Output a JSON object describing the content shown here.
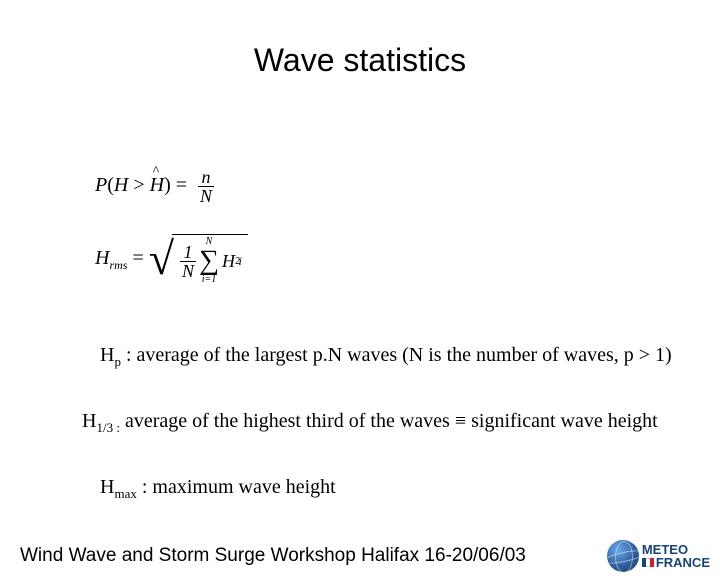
{
  "title": "Wave statistics",
  "formulas": {
    "prob": {
      "lhs_P": "P",
      "lhs_open": "(",
      "lhs_H": "H",
      "lhs_gt": " > ",
      "lhs_Hhat": "H",
      "lhs_close": ")",
      "eq": " = ",
      "num": "n",
      "den": "N"
    },
    "hrms": {
      "H": "H",
      "rms": "rms",
      "eq": " = ",
      "frac_num": "1",
      "frac_den": "N",
      "sum_top": "N",
      "sum_bot": "i=1",
      "Hi": "H",
      "i": "i",
      "sq": "2"
    }
  },
  "defs": {
    "hp": {
      "sym": "H",
      "sub": "p",
      "text": " : average of the largest p.N waves (N is the number of waves, p > 1)"
    },
    "h13": {
      "sym": "H",
      "sub": "1/3 :",
      "text": " average of the highest third of the waves ≡ significant wave height"
    },
    "hmax": {
      "sym": "H",
      "sub": "max",
      "text": " : maximum wave height"
    }
  },
  "footer": {
    "text": "Wind Wave and Storm Surge Workshop Halifax 16-20/06/03",
    "logo_line1": "METEO",
    "logo_line2": "FRANCE"
  },
  "colors": {
    "text": "#000000",
    "logo_blue": "#17437a",
    "flag_blue": "#17437a",
    "flag_red": "#d02030",
    "background": "#ffffff"
  }
}
